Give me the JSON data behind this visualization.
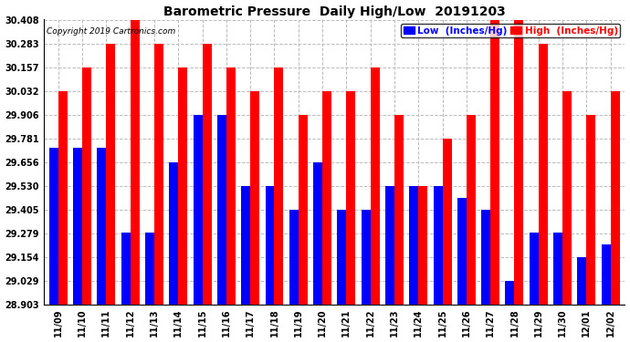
{
  "title": "Barometric Pressure  Daily High/Low  20191203",
  "copyright": "Copyright 2019 Cartronics.com",
  "legend_low": "Low  (Inches/Hg)",
  "legend_high": "High  (Inches/Hg)",
  "dates": [
    "11/09",
    "11/10",
    "11/11",
    "11/12",
    "11/13",
    "11/14",
    "11/15",
    "11/16",
    "11/17",
    "11/18",
    "11/19",
    "11/20",
    "11/21",
    "11/22",
    "11/23",
    "11/24",
    "11/25",
    "11/26",
    "11/27",
    "11/28",
    "11/29",
    "11/30",
    "12/01",
    "12/02"
  ],
  "low": [
    29.73,
    29.73,
    29.73,
    29.283,
    29.283,
    29.656,
    29.906,
    29.906,
    29.53,
    29.53,
    29.405,
    29.656,
    29.405,
    29.405,
    29.53,
    29.53,
    29.53,
    29.467,
    29.405,
    29.029,
    29.283,
    29.283,
    29.154,
    29.22
  ],
  "high": [
    30.032,
    30.157,
    30.283,
    30.408,
    30.283,
    30.157,
    30.283,
    30.157,
    30.032,
    30.157,
    29.906,
    30.032,
    30.032,
    30.157,
    29.906,
    29.53,
    29.781,
    29.906,
    30.408,
    30.408,
    30.283,
    30.032,
    29.906,
    30.032
  ],
  "ylim_min": 28.903,
  "ylim_max": 30.408,
  "yticks": [
    28.903,
    29.029,
    29.154,
    29.279,
    29.405,
    29.53,
    29.656,
    29.781,
    29.906,
    30.032,
    30.157,
    30.283,
    30.408
  ],
  "bar_width": 0.38,
  "low_color": "#0000ff",
  "high_color": "#ff0000",
  "bg_color": "#ffffff",
  "grid_color": "#bbbbbb",
  "title_fontsize": 10,
  "tick_fontsize": 7,
  "legend_fontsize": 7.5
}
